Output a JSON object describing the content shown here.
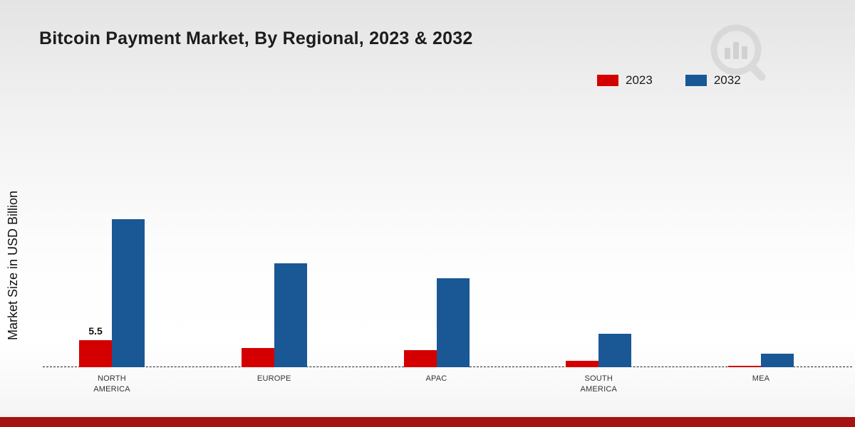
{
  "title": "Bitcoin Payment Market, By Regional, 2023 & 2032",
  "ylabel": "Market Size in USD Billion",
  "legend": [
    {
      "name": "2023",
      "color": "#d40000"
    },
    {
      "name": "2032",
      "color": "#1a5795"
    }
  ],
  "colors": {
    "bar_2023": "#d40000",
    "bar_2032": "#1a5795",
    "footer_bar": "#a51212",
    "watermark_gray": "#c9c9c9"
  },
  "chart_data": {
    "type": "bar",
    "title": "Bitcoin Payment Market, By Regional, 2023 & 2032",
    "xlabel": "",
    "ylabel": "Market Size in USD Billion",
    "categories": [
      "NORTH AMERICA",
      "EUROPE",
      "APAC",
      "SOUTH AMERICA",
      "MEA"
    ],
    "series": [
      {
        "name": "2023",
        "color": "#d40000",
        "values": [
          5.5,
          3.9,
          3.5,
          1.3,
          0.3
        ]
      },
      {
        "name": "2032",
        "color": "#1a5795",
        "values": [
          30,
          21,
          18,
          6.8,
          2.7
        ]
      }
    ],
    "annotations": [
      {
        "series": "2023",
        "category": "NORTH AMERICA",
        "text": "5.5"
      }
    ],
    "ylim": [
      0,
      35
    ],
    "grid": false,
    "legend_position": "top-right",
    "baseline_style": "dashed"
  }
}
